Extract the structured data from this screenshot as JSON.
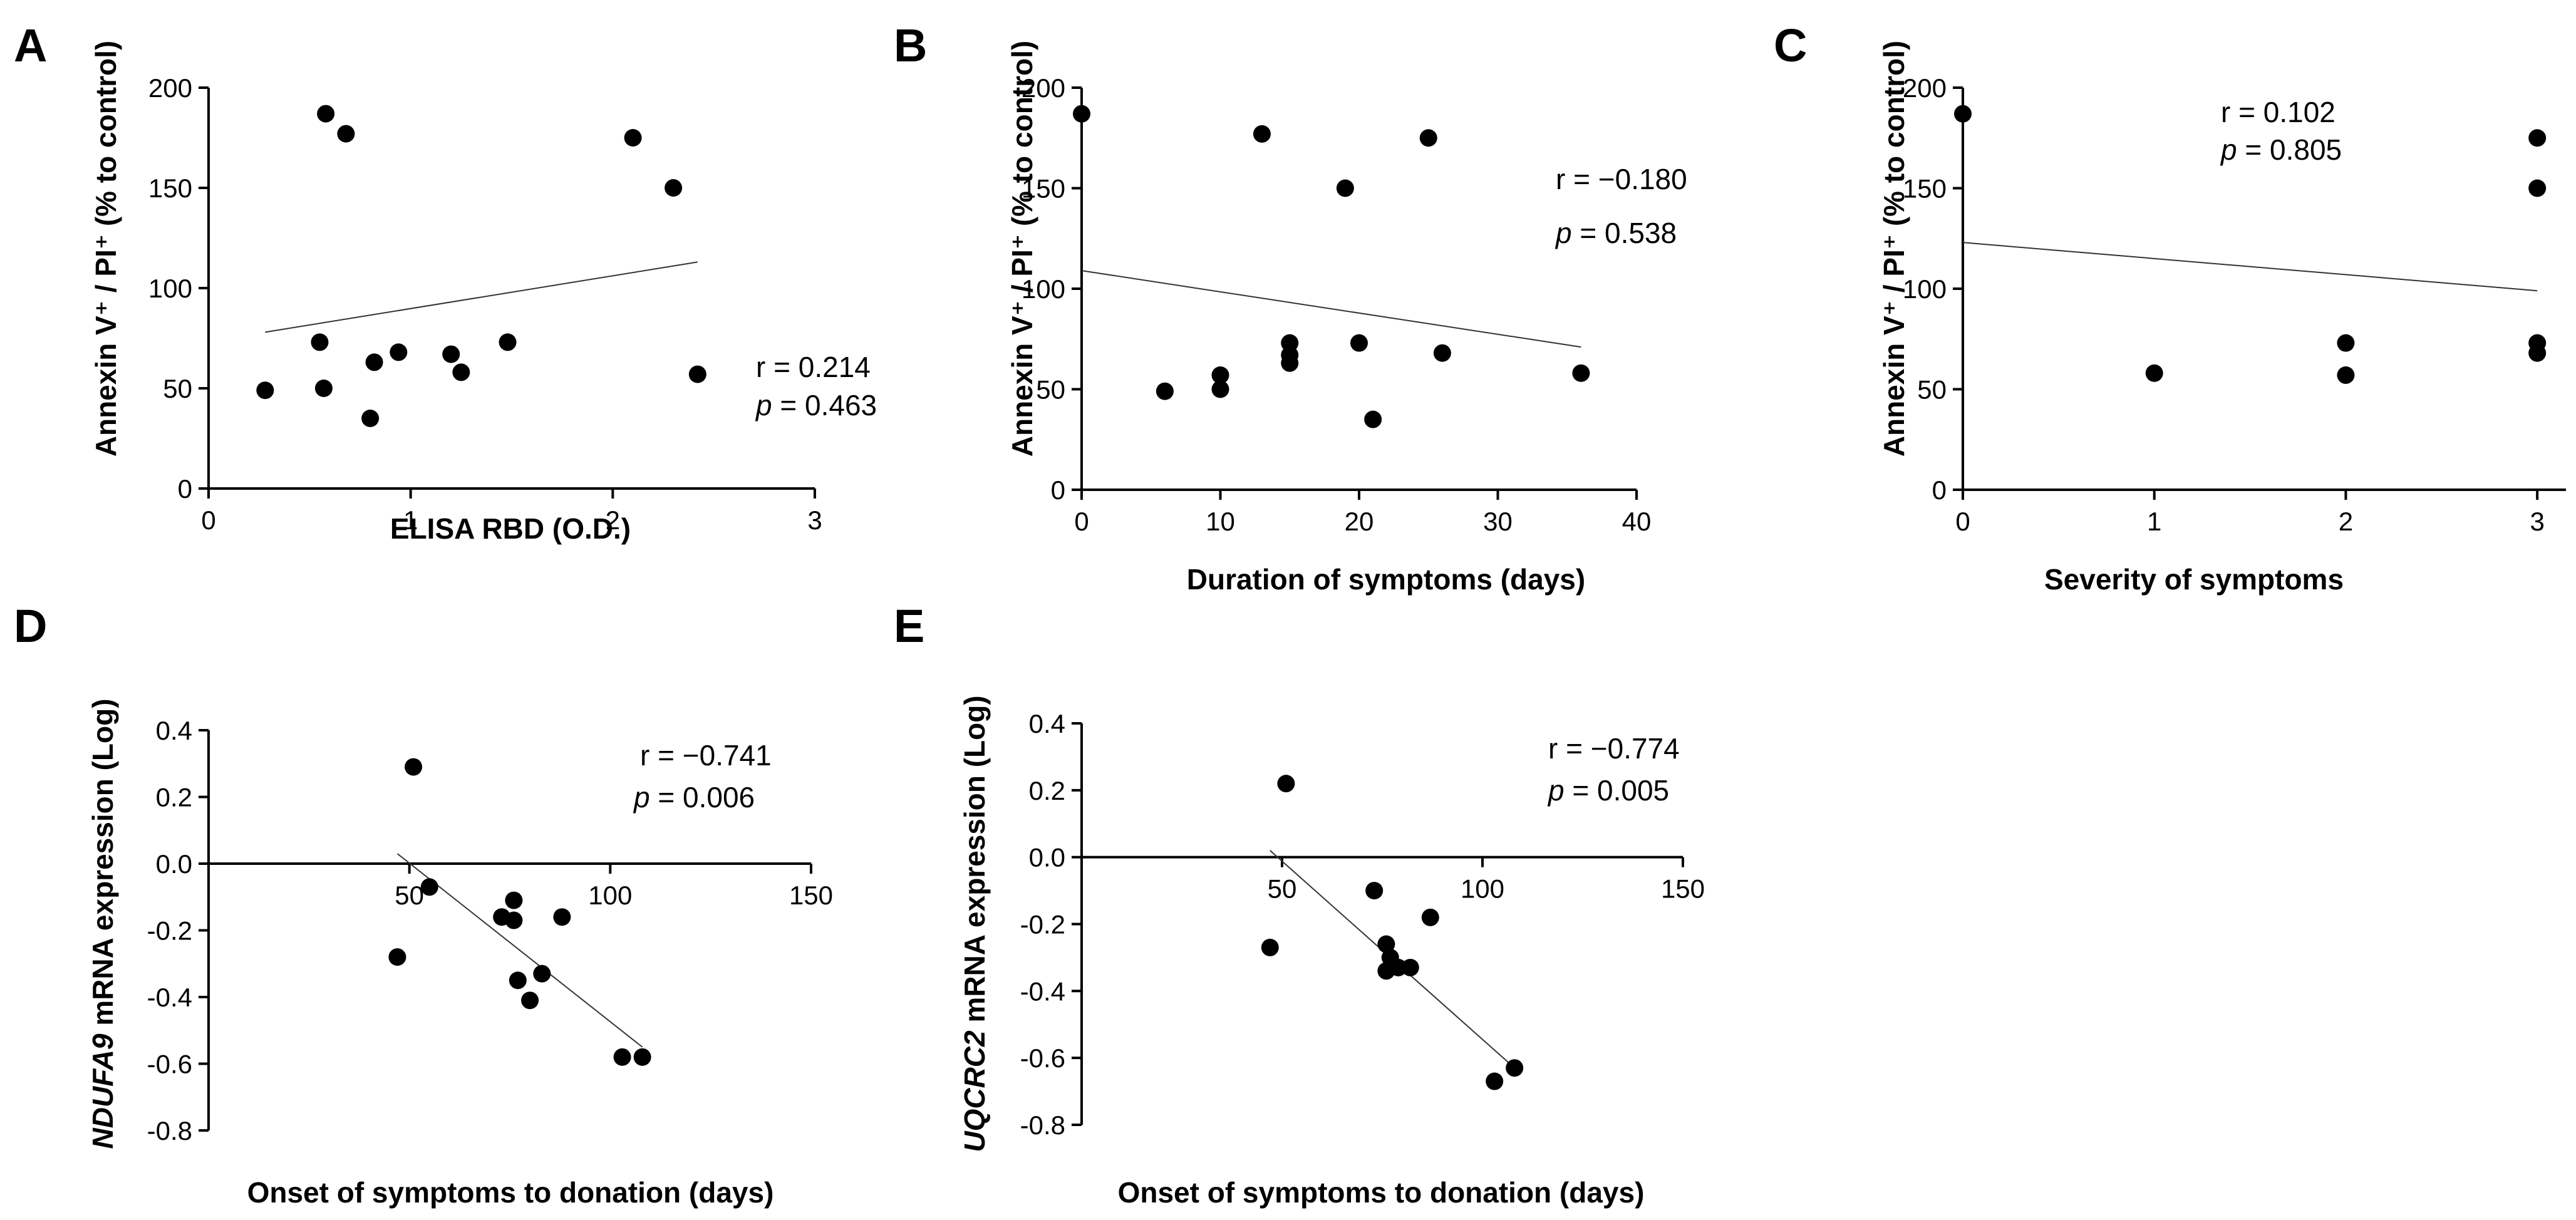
{
  "chart_data": [
    {
      "panel": "A",
      "type": "scatter",
      "xlabel": "ELISA RBD (O.D.)",
      "ylabel": "Annexin V⁺ / PI⁺  (% to control)",
      "xlim": [
        0,
        3
      ],
      "ylim": [
        0,
        200
      ],
      "xticks": [
        0,
        1,
        2,
        3
      ],
      "yticks": [
        0,
        50,
        100,
        150,
        200
      ],
      "points": [
        [
          0.28,
          49
        ],
        [
          0.55,
          73
        ],
        [
          0.57,
          50
        ],
        [
          0.58,
          187
        ],
        [
          0.68,
          177
        ],
        [
          0.8,
          35
        ],
        [
          0.82,
          63
        ],
        [
          0.94,
          68
        ],
        [
          1.2,
          67
        ],
        [
          1.25,
          58
        ],
        [
          1.48,
          73
        ],
        [
          2.1,
          175
        ],
        [
          2.3,
          150
        ],
        [
          2.42,
          57
        ]
      ],
      "fit_line": [
        [
          0.28,
          78
        ],
        [
          2.42,
          113
        ]
      ],
      "r_text": "r = 0.214",
      "p_label": "p",
      "p_value": " = 0.463"
    },
    {
      "panel": "B",
      "type": "scatter",
      "xlabel": "Duration of symptoms (days)",
      "ylabel": "Annexin V⁺ / PI⁺  (% to control)",
      "xlim": [
        0,
        40
      ],
      "ylim": [
        0,
        200
      ],
      "xticks": [
        0,
        10,
        20,
        30,
        40
      ],
      "yticks": [
        0,
        50,
        100,
        150,
        200
      ],
      "points": [
        [
          0,
          187
        ],
        [
          6,
          49
        ],
        [
          10,
          57
        ],
        [
          10,
          50
        ],
        [
          13,
          177
        ],
        [
          15,
          73
        ],
        [
          15,
          67
        ],
        [
          15,
          63
        ],
        [
          19,
          150
        ],
        [
          20,
          73
        ],
        [
          21,
          35
        ],
        [
          25,
          175
        ],
        [
          26,
          68
        ],
        [
          36,
          58
        ]
      ],
      "fit_line": [
        [
          0,
          109
        ],
        [
          36,
          71
        ]
      ],
      "r_text": "r = −0.180",
      "p_label": "p",
      "p_value": " = 0.538"
    },
    {
      "panel": "C",
      "type": "scatter",
      "xlabel": "Severity of symptoms",
      "ylabel": "Annexin V⁺ / PI⁺  (% to control)",
      "xlim": [
        0,
        3.15
      ],
      "ylim": [
        0,
        200
      ],
      "xticks": [
        0,
        1,
        2,
        3
      ],
      "yticks": [
        0,
        50,
        100,
        150,
        200
      ],
      "points": [
        [
          0,
          187
        ],
        [
          1,
          58
        ],
        [
          2,
          73
        ],
        [
          2,
          57
        ],
        [
          3,
          175
        ],
        [
          3,
          150
        ],
        [
          3,
          73
        ],
        [
          3,
          68
        ]
      ],
      "fit_line": [
        [
          0,
          123
        ],
        [
          3,
          99
        ]
      ],
      "r_text": "r = 0.102",
      "p_label": "p",
      "p_value": " = 0.805"
    },
    {
      "panel": "D",
      "type": "scatter",
      "xlabel": "Onset of symptoms to donation (days)",
      "ylabel_gene": "NDUFA9",
      "ylabel_rest": " mRNA expression (Log)",
      "xlim": [
        0,
        150
      ],
      "ylim": [
        -0.8,
        0.4
      ],
      "xticks": [
        50,
        100,
        150
      ],
      "yticks": [
        -0.8,
        -0.6,
        -0.4,
        -0.2,
        0.0,
        0.2,
        0.4
      ],
      "ytick_labels": [
        "-0.8",
        "-0.6",
        "-0.4",
        "-0.2",
        "0.0",
        "0.2",
        "0.4"
      ],
      "points": [
        [
          47,
          -0.28
        ],
        [
          51,
          0.29
        ],
        [
          55,
          -0.07
        ],
        [
          73,
          -0.16
        ],
        [
          76,
          -0.11
        ],
        [
          76,
          -0.17
        ],
        [
          77,
          -0.35
        ],
        [
          80,
          -0.41
        ],
        [
          83,
          -0.33
        ],
        [
          88,
          -0.16
        ],
        [
          103,
          -0.58
        ],
        [
          108,
          -0.58
        ]
      ],
      "fit_line": [
        [
          47,
          0.03
        ],
        [
          108,
          -0.55
        ]
      ],
      "r_text": "r = −0.741",
      "p_label": "p",
      "p_value": " = 0.006"
    },
    {
      "panel": "E",
      "type": "scatter",
      "xlabel": "Onset of symptoms to donation (days)",
      "ylabel_gene": "UQCRC2",
      "ylabel_rest": " mRNA expression (Log)",
      "xlim": [
        0,
        150
      ],
      "ylim": [
        -0.8,
        0.4
      ],
      "xticks": [
        50,
        100,
        150
      ],
      "yticks": [
        -0.8,
        -0.6,
        -0.4,
        -0.2,
        0.0,
        0.2,
        0.4
      ],
      "ytick_labels": [
        "-0.8",
        "-0.6",
        "-0.4",
        "-0.2",
        "0.0",
        "0.2",
        "0.4"
      ],
      "points": [
        [
          47,
          -0.27
        ],
        [
          51,
          0.22
        ],
        [
          73,
          -0.1
        ],
        [
          76,
          -0.26
        ],
        [
          77,
          -0.3
        ],
        [
          76,
          -0.34
        ],
        [
          79,
          -0.33
        ],
        [
          82,
          -0.33
        ],
        [
          87,
          -0.18
        ],
        [
          103,
          -0.67
        ],
        [
          108,
          -0.63
        ]
      ],
      "fit_line": [
        [
          47,
          0.02
        ],
        [
          108,
          -0.63
        ]
      ],
      "r_text": "r = −0.774",
      "p_label": "p",
      "p_value": " = 0.005"
    }
  ]
}
